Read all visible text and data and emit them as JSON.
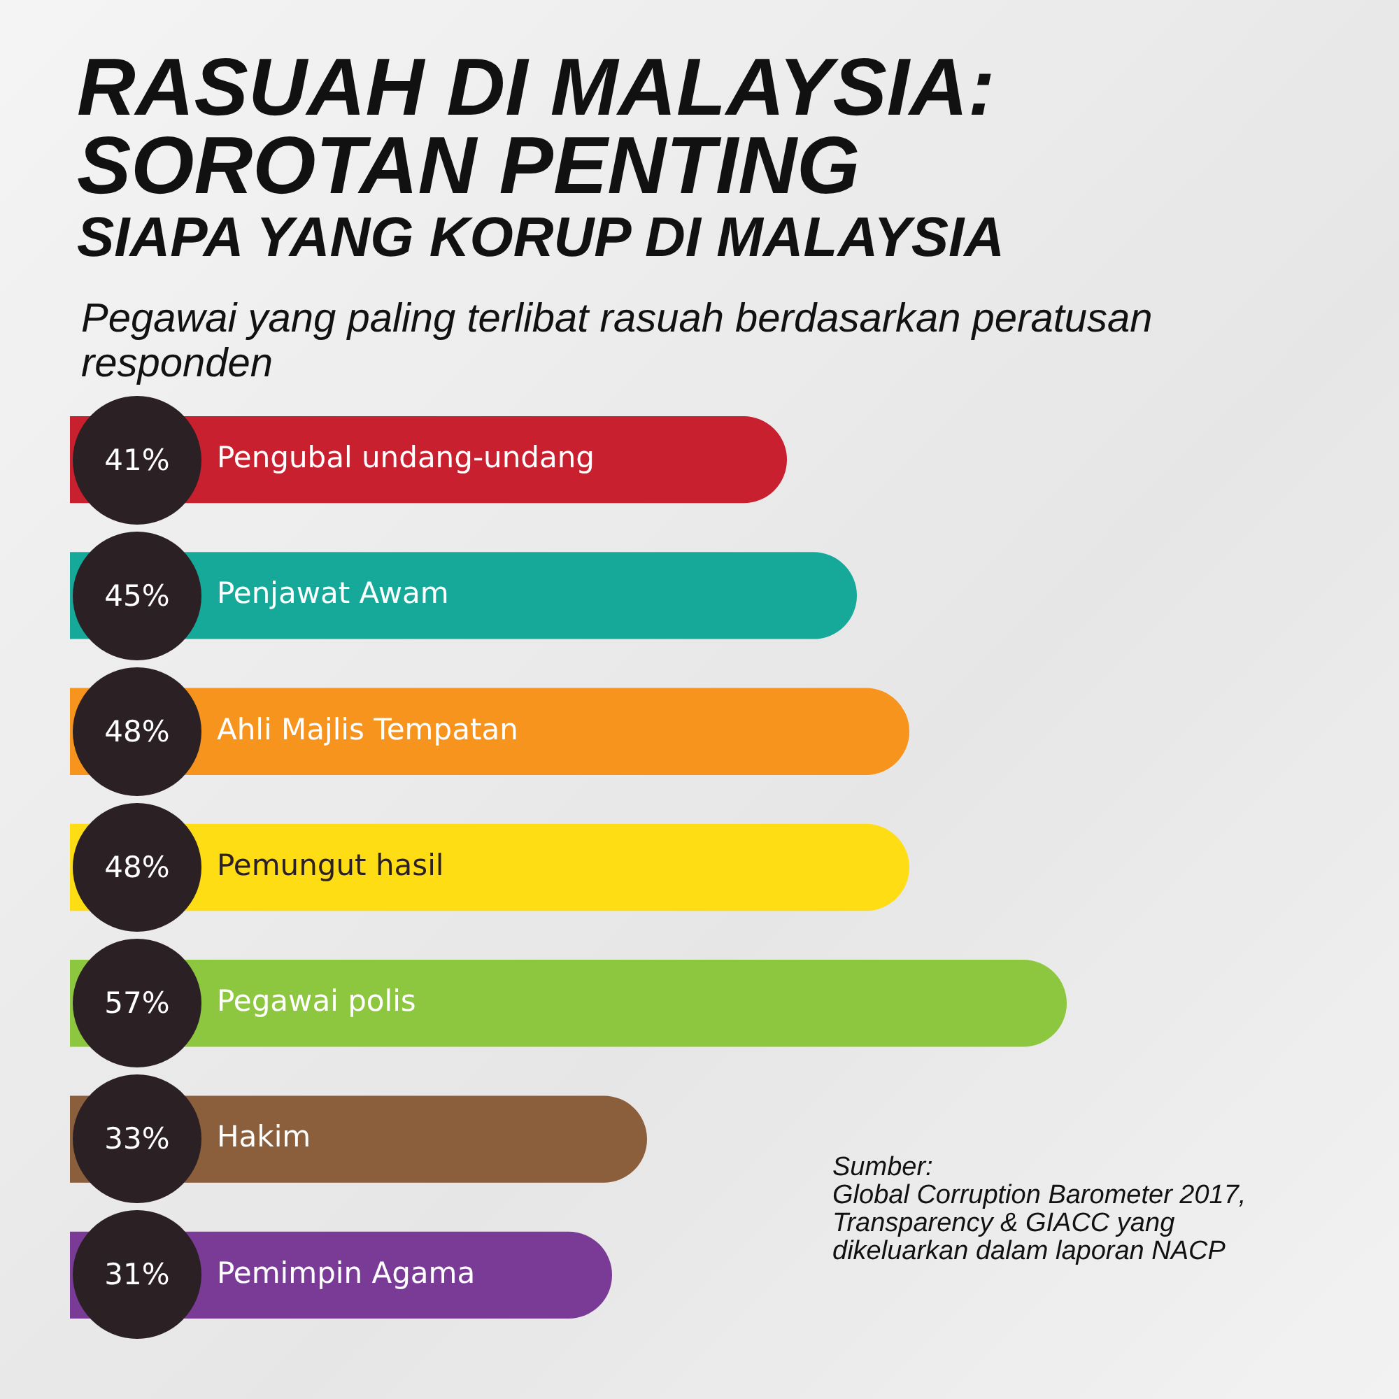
{
  "chart_data": {
    "type": "bar",
    "orientation": "horizontal",
    "title": "RASUAH DI MALAYSIA: SOROTAN PENTING",
    "subtitle": "SIAPA YANG KORUP DI MALAYSIA",
    "annotations": [
      "Pegawai yang paling terlibat rasuah berdasarkan peratusan responden",
      "Sumber:\nGlobal Corruption Barometer 2017,\nTransparency & GIACC yang\ndikeluarkan dalam laporan NACP"
    ],
    "categories": [
      "Pengubal undang-undang",
      "Penjawat Awam",
      "Ahli Majlis Tempatan",
      "Pemungut hasil",
      "Pegawai polis",
      "Hakim",
      "Pemimpin Agama"
    ],
    "values": [
      41,
      45,
      48,
      48,
      57,
      33,
      31
    ],
    "value_labels": [
      "41%",
      "45%",
      "48%",
      "48%",
      "57%",
      "33%",
      "31%"
    ],
    "colors": [
      "#c8202f",
      "#16a99a",
      "#f7941d",
      "#ffdd15",
      "#8dc63f",
      "#8b5e3c",
      "#7a3b97"
    ],
    "legend": false
  }
}
